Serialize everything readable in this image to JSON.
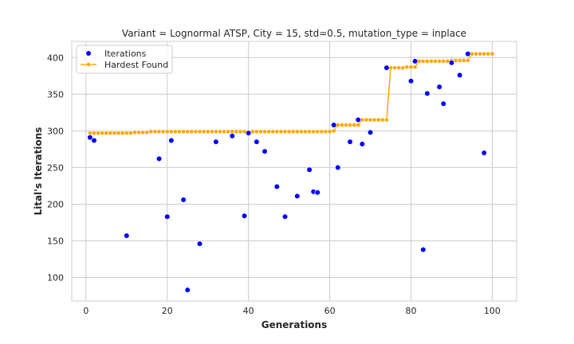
{
  "chart_data": {
    "type": "scatter",
    "title": "Variant = Lognormal ATSP, City = 15, std=0.5, mutation_type = inplace",
    "xlabel": "Generations",
    "ylabel": "Lital's Iterations",
    "xlim": [
      -3.5,
      106
    ],
    "ylim": [
      68,
      422
    ],
    "xticks": [
      0,
      20,
      40,
      60,
      80,
      100
    ],
    "yticks": [
      100,
      150,
      200,
      250,
      300,
      350,
      400
    ],
    "grid": true,
    "legend_position": "top-left",
    "series": [
      {
        "name": "Iterations",
        "kind": "scatter",
        "color": "#0000ff",
        "x": [
          1,
          2,
          10,
          18,
          20,
          21,
          24,
          25,
          28,
          32,
          36,
          39,
          40,
          42,
          44,
          47,
          49,
          52,
          55,
          56,
          57,
          61,
          62,
          65,
          67,
          68,
          70,
          74,
          80,
          81,
          83,
          84,
          87,
          88,
          90,
          92,
          94,
          98
        ],
        "y": [
          291,
          287,
          157,
          262,
          183,
          287,
          206,
          83,
          146,
          285,
          293,
          184,
          297,
          285,
          272,
          224,
          183,
          211,
          247,
          217,
          216,
          308,
          250,
          285,
          315,
          282,
          298,
          386,
          368,
          395,
          138,
          351,
          360,
          337,
          393,
          376,
          405,
          270
        ]
      },
      {
        "name": "Hardest Found",
        "kind": "line",
        "color": "#ffa500",
        "x": [
          1,
          2,
          3,
          4,
          5,
          6,
          7,
          8,
          9,
          10,
          11,
          12,
          13,
          14,
          15,
          16,
          17,
          18,
          19,
          20,
          21,
          22,
          23,
          24,
          25,
          26,
          27,
          28,
          29,
          30,
          31,
          32,
          33,
          34,
          35,
          36,
          37,
          38,
          39,
          40,
          41,
          42,
          43,
          44,
          45,
          46,
          47,
          48,
          49,
          50,
          51,
          52,
          53,
          54,
          55,
          56,
          57,
          58,
          59,
          60,
          61,
          62,
          63,
          64,
          65,
          66,
          67,
          68,
          69,
          70,
          71,
          72,
          73,
          74,
          75,
          76,
          77,
          78,
          79,
          80,
          81,
          82,
          83,
          84,
          85,
          86,
          87,
          88,
          89,
          90,
          91,
          92,
          93,
          94,
          95,
          96,
          97,
          98,
          99,
          100
        ],
        "y": [
          297,
          297,
          297,
          297,
          297,
          297,
          297,
          297,
          297,
          297,
          297,
          298,
          298,
          298,
          298,
          299,
          299,
          299,
          299,
          299,
          299,
          299,
          299,
          299,
          299,
          299,
          299,
          299,
          299,
          299,
          299,
          299,
          299,
          299,
          299,
          299,
          299,
          299,
          299,
          299,
          299,
          299,
          299,
          299,
          299,
          299,
          299,
          299,
          299,
          299,
          299,
          299,
          299,
          299,
          299,
          299,
          299,
          299,
          299,
          299,
          300,
          308,
          308,
          308,
          308,
          308,
          308,
          315,
          315,
          315,
          315,
          315,
          315,
          315,
          386,
          386,
          386,
          386,
          387,
          387,
          387,
          395,
          395,
          395,
          395,
          395,
          395,
          395,
          395,
          396,
          396,
          396,
          396,
          396,
          405,
          405,
          405,
          405,
          405,
          405
        ]
      }
    ]
  }
}
